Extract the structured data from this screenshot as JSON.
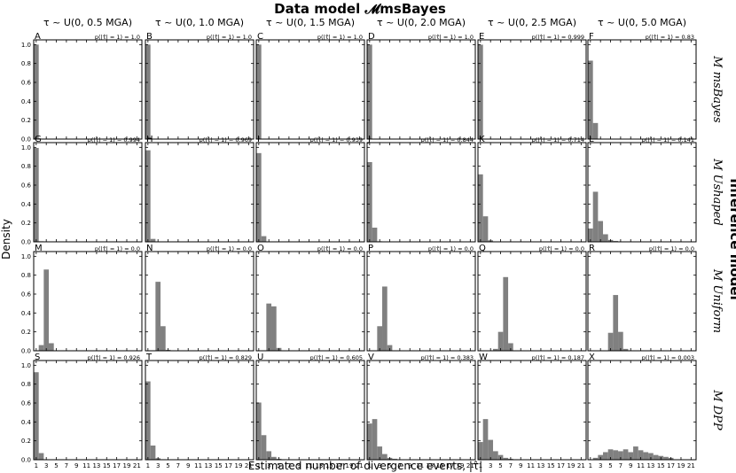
{
  "figure": {
    "title": "Data model 𝓜msBayes",
    "right_title": "Inference model",
    "y_label": "Density",
    "x_label": "Estimated number of divergence events, |τ̂|"
  },
  "chart_data": {
    "type": "bar",
    "x_ticks": [
      1,
      3,
      5,
      7,
      9,
      11,
      13,
      15,
      17,
      19,
      21
    ],
    "y_ticks": [
      "0.0",
      "0.2",
      "0.4",
      "0.6",
      "0.8",
      "1.0"
    ],
    "ylim": [
      0,
      1.05
    ],
    "xlim": [
      0.5,
      22
    ],
    "columns": [
      "τ ~ U(0, 0.5 MGA)",
      "τ ~ U(0, 1.0 MGA)",
      "τ ~ U(0, 1.5 MGA)",
      "τ ~ U(0, 2.0 MGA)",
      "τ ~ U(0, 2.5 MGA)",
      "τ ~ U(0, 5.0 MGA)"
    ],
    "rows": [
      "M msBayes",
      "M Ushaped",
      "M Uniform",
      "M DPP"
    ],
    "panels": [
      {
        "letter": "A",
        "annotation": "p(|τ̂| = 1) = 1.0",
        "values": [
          1.0
        ]
      },
      {
        "letter": "B",
        "annotation": "p(|τ̂| = 1) = 1.0",
        "values": [
          1.0
        ]
      },
      {
        "letter": "C",
        "annotation": "p(|τ̂| = 1) = 1.0",
        "values": [
          1.0
        ]
      },
      {
        "letter": "D",
        "annotation": "p(|τ̂| = 1) = 1.0",
        "values": [
          1.0
        ]
      },
      {
        "letter": "E",
        "annotation": "p(|τ̂| = 1) = 0.999",
        "values": [
          0.999,
          0.001
        ]
      },
      {
        "letter": "F",
        "annotation": "p(|τ̂| = 1) = 0.83",
        "values": [
          0.83,
          0.17
        ]
      },
      {
        "letter": "G",
        "annotation": "p(|τ̂| = 1) = 0.994",
        "values": [
          0.994,
          0.006
        ]
      },
      {
        "letter": "H",
        "annotation": "p(|τ̂| = 1) = 0.969",
        "values": [
          0.969,
          0.031
        ]
      },
      {
        "letter": "I",
        "annotation": "p(|τ̂| = 1) = 0.939",
        "values": [
          0.939,
          0.06,
          0.001
        ]
      },
      {
        "letter": "J",
        "annotation": "p(|τ̂| = 1) = 0.844",
        "values": [
          0.844,
          0.15,
          0.006
        ]
      },
      {
        "letter": "K",
        "annotation": "p(|τ̂| = 1) = 0.714",
        "values": [
          0.714,
          0.27,
          0.016
        ]
      },
      {
        "letter": "L",
        "annotation": "p(|τ̂| = 1) = 0.141",
        "values": [
          0.141,
          0.53,
          0.22,
          0.08,
          0.02,
          0.009
        ]
      },
      {
        "letter": "M",
        "annotation": "p(|τ̂| = 1) = 0.0",
        "values": [
          0.0,
          0.06,
          0.86,
          0.08,
          0.0
        ]
      },
      {
        "letter": "N",
        "annotation": "p(|τ̂| = 1) = 0.0",
        "values": [
          0.0,
          0.0,
          0.73,
          0.26,
          0.01
        ]
      },
      {
        "letter": "O",
        "annotation": "p(|τ̂| = 1) = 0.0",
        "values": [
          0.0,
          0.0,
          0.5,
          0.47,
          0.03
        ]
      },
      {
        "letter": "P",
        "annotation": "p(|τ̂| = 1) = 0.0",
        "values": [
          0.0,
          0.0,
          0.26,
          0.68,
          0.06
        ]
      },
      {
        "letter": "Q",
        "annotation": "p(|τ̂| = 1) = 0.0",
        "values": [
          0.0,
          0.0,
          0.0,
          0.02,
          0.2,
          0.78,
          0.08
        ]
      },
      {
        "letter": "R",
        "annotation": "p(|τ̂| = 1) = 0.0",
        "values": [
          0.0,
          0.0,
          0.0,
          0.0,
          0.19,
          0.59,
          0.2,
          0.02
        ]
      },
      {
        "letter": "S",
        "annotation": "p(|τ̂| = 1) = 0.926",
        "values": [
          0.926,
          0.07,
          0.004
        ]
      },
      {
        "letter": "T",
        "annotation": "p(|τ̂| = 1) = 0.829",
        "values": [
          0.829,
          0.15,
          0.016,
          0.005
        ]
      },
      {
        "letter": "U",
        "annotation": "p(|τ̂| = 1) = 0.605",
        "values": [
          0.605,
          0.26,
          0.09,
          0.03,
          0.01,
          0.005
        ]
      },
      {
        "letter": "V",
        "annotation": "p(|τ̂| = 1) = 0.383",
        "values": [
          0.383,
          0.43,
          0.14,
          0.06,
          0.02,
          0.01
        ]
      },
      {
        "letter": "W",
        "annotation": "p(|τ̂| = 1) = 0.187",
        "values": [
          0.187,
          0.43,
          0.21,
          0.09,
          0.05,
          0.02,
          0.01,
          0.005
        ]
      },
      {
        "letter": "X",
        "annotation": "p(|τ̂| = 1) = 0.003",
        "values": [
          0.003,
          0.02,
          0.05,
          0.08,
          0.11,
          0.1,
          0.09,
          0.11,
          0.08,
          0.14,
          0.1,
          0.08,
          0.07,
          0.05,
          0.04,
          0.03,
          0.02
        ]
      }
    ]
  },
  "colors": {
    "bar": "#808080",
    "axis": "#000000"
  }
}
